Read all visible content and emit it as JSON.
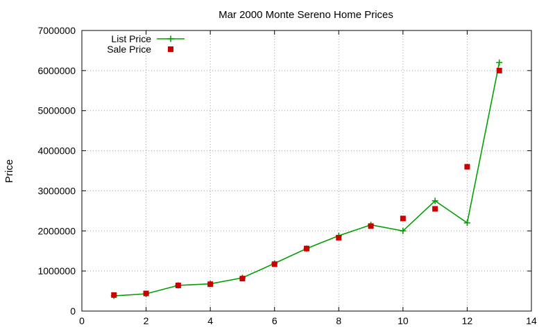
{
  "chart_data": {
    "type": "line",
    "title": "Mar 2000 Monte Sereno Home Prices",
    "xlabel": "",
    "ylabel": "Price",
    "xlim": [
      0,
      14
    ],
    "ylim": [
      0,
      7000000
    ],
    "x_ticks": [
      0,
      2,
      4,
      6,
      8,
      10,
      12,
      14
    ],
    "y_ticks": [
      0,
      1000000,
      2000000,
      3000000,
      4000000,
      5000000,
      6000000,
      7000000
    ],
    "grid": true,
    "legend_position": "top-left",
    "series": [
      {
        "name": "List Price",
        "style": "line-with-plus-markers",
        "color": "#00a000",
        "x": [
          1,
          2,
          3,
          4,
          5,
          6,
          7,
          8,
          9,
          10,
          11,
          12,
          13
        ],
        "values": [
          380000,
          430000,
          640000,
          680000,
          830000,
          1190000,
          1560000,
          1880000,
          2150000,
          2000000,
          2750000,
          2200000,
          6200000
        ]
      },
      {
        "name": "Sale Price",
        "style": "square-markers",
        "color": "#cc0000",
        "x": [
          1,
          2,
          3,
          4,
          5,
          6,
          7,
          8,
          9,
          10,
          11,
          12,
          13
        ],
        "values": [
          400000,
          440000,
          640000,
          670000,
          810000,
          1170000,
          1560000,
          1830000,
          2120000,
          2310000,
          2550000,
          3600000,
          6000000
        ]
      }
    ]
  }
}
